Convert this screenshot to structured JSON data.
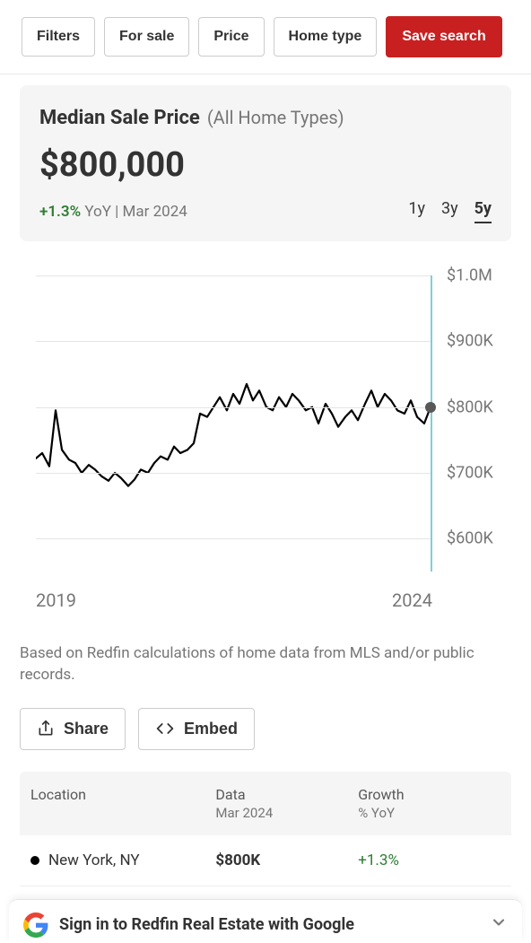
{
  "filters": {
    "buttons": [
      "Filters",
      "For sale",
      "Price",
      "Home type"
    ],
    "save_label": "Save search"
  },
  "card": {
    "title": "Median Sale Price",
    "subtitle": "(All Home Types)",
    "price": "$800,000",
    "pct": "+1.3%",
    "yoy_text": " YoY | Mar 2024",
    "ranges": [
      "1y",
      "3y",
      "5y"
    ],
    "active_range": "5y"
  },
  "chart": {
    "type": "line",
    "line_color": "#000000",
    "line_width": 2.2,
    "grid_color": "#e5e5e5",
    "right_border_color": "#7fcfd6",
    "background_color": "#ffffff",
    "end_dot_color": "#585858",
    "ylim": [
      550,
      1000
    ],
    "ytick_values": [
      600,
      700,
      800,
      900,
      1000
    ],
    "ytick_labels": [
      "$600K",
      "$700K",
      "$800K",
      "$900K",
      "$1.0M"
    ],
    "xlim": [
      2019,
      2024
    ],
    "xtick_labels": [
      "2019",
      "2024"
    ],
    "label_color": "#767676",
    "label_fontsize": 18,
    "series": [
      {
        "x": 2019.0,
        "y": 722
      },
      {
        "x": 2019.08,
        "y": 730
      },
      {
        "x": 2019.17,
        "y": 710
      },
      {
        "x": 2019.25,
        "y": 795
      },
      {
        "x": 2019.33,
        "y": 735
      },
      {
        "x": 2019.42,
        "y": 720
      },
      {
        "x": 2019.5,
        "y": 715
      },
      {
        "x": 2019.58,
        "y": 700
      },
      {
        "x": 2019.67,
        "y": 712
      },
      {
        "x": 2019.75,
        "y": 705
      },
      {
        "x": 2019.83,
        "y": 695
      },
      {
        "x": 2019.92,
        "y": 688
      },
      {
        "x": 2020.0,
        "y": 700
      },
      {
        "x": 2020.08,
        "y": 692
      },
      {
        "x": 2020.17,
        "y": 680
      },
      {
        "x": 2020.25,
        "y": 690
      },
      {
        "x": 2020.33,
        "y": 705
      },
      {
        "x": 2020.42,
        "y": 700
      },
      {
        "x": 2020.5,
        "y": 715
      },
      {
        "x": 2020.58,
        "y": 725
      },
      {
        "x": 2020.67,
        "y": 720
      },
      {
        "x": 2020.75,
        "y": 740
      },
      {
        "x": 2020.83,
        "y": 730
      },
      {
        "x": 2020.92,
        "y": 735
      },
      {
        "x": 2021.0,
        "y": 745
      },
      {
        "x": 2021.08,
        "y": 790
      },
      {
        "x": 2021.17,
        "y": 785
      },
      {
        "x": 2021.25,
        "y": 800
      },
      {
        "x": 2021.33,
        "y": 815
      },
      {
        "x": 2021.42,
        "y": 795
      },
      {
        "x": 2021.5,
        "y": 820
      },
      {
        "x": 2021.58,
        "y": 805
      },
      {
        "x": 2021.67,
        "y": 835
      },
      {
        "x": 2021.75,
        "y": 810
      },
      {
        "x": 2021.83,
        "y": 825
      },
      {
        "x": 2021.92,
        "y": 800
      },
      {
        "x": 2022.0,
        "y": 795
      },
      {
        "x": 2022.08,
        "y": 815
      },
      {
        "x": 2022.17,
        "y": 800
      },
      {
        "x": 2022.25,
        "y": 820
      },
      {
        "x": 2022.33,
        "y": 810
      },
      {
        "x": 2022.42,
        "y": 795
      },
      {
        "x": 2022.5,
        "y": 800
      },
      {
        "x": 2022.58,
        "y": 775
      },
      {
        "x": 2022.67,
        "y": 805
      },
      {
        "x": 2022.75,
        "y": 790
      },
      {
        "x": 2022.83,
        "y": 770
      },
      {
        "x": 2022.92,
        "y": 785
      },
      {
        "x": 2023.0,
        "y": 795
      },
      {
        "x": 2023.08,
        "y": 780
      },
      {
        "x": 2023.17,
        "y": 805
      },
      {
        "x": 2023.25,
        "y": 825
      },
      {
        "x": 2023.33,
        "y": 800
      },
      {
        "x": 2023.42,
        "y": 820
      },
      {
        "x": 2023.5,
        "y": 810
      },
      {
        "x": 2023.58,
        "y": 795
      },
      {
        "x": 2023.67,
        "y": 790
      },
      {
        "x": 2023.75,
        "y": 810
      },
      {
        "x": 2023.83,
        "y": 785
      },
      {
        "x": 2023.92,
        "y": 775
      },
      {
        "x": 2024.0,
        "y": 800
      }
    ]
  },
  "footnote": "Based on Redfin calculations of home data from MLS and/or public records.",
  "actions": {
    "share": "Share",
    "embed": "Embed"
  },
  "table": {
    "headers": {
      "location": "Location",
      "data": "Data",
      "data_sub": "Mar 2024",
      "growth": "Growth",
      "growth_sub": "% YoY"
    },
    "rows": [
      {
        "dot_color": "#000000",
        "location": "New York, NY",
        "data": "$800K",
        "growth": "+1.3%",
        "growth_color": "#2e7d32"
      }
    ]
  },
  "signin": {
    "text": "Sign in to Redfin Real Estate with Google"
  },
  "colors": {
    "accent_red": "#c82021",
    "text_primary": "#333333",
    "text_muted": "#767676",
    "positive": "#2e7d32",
    "card_bg": "#f5f5f5",
    "border": "#cccccc"
  }
}
